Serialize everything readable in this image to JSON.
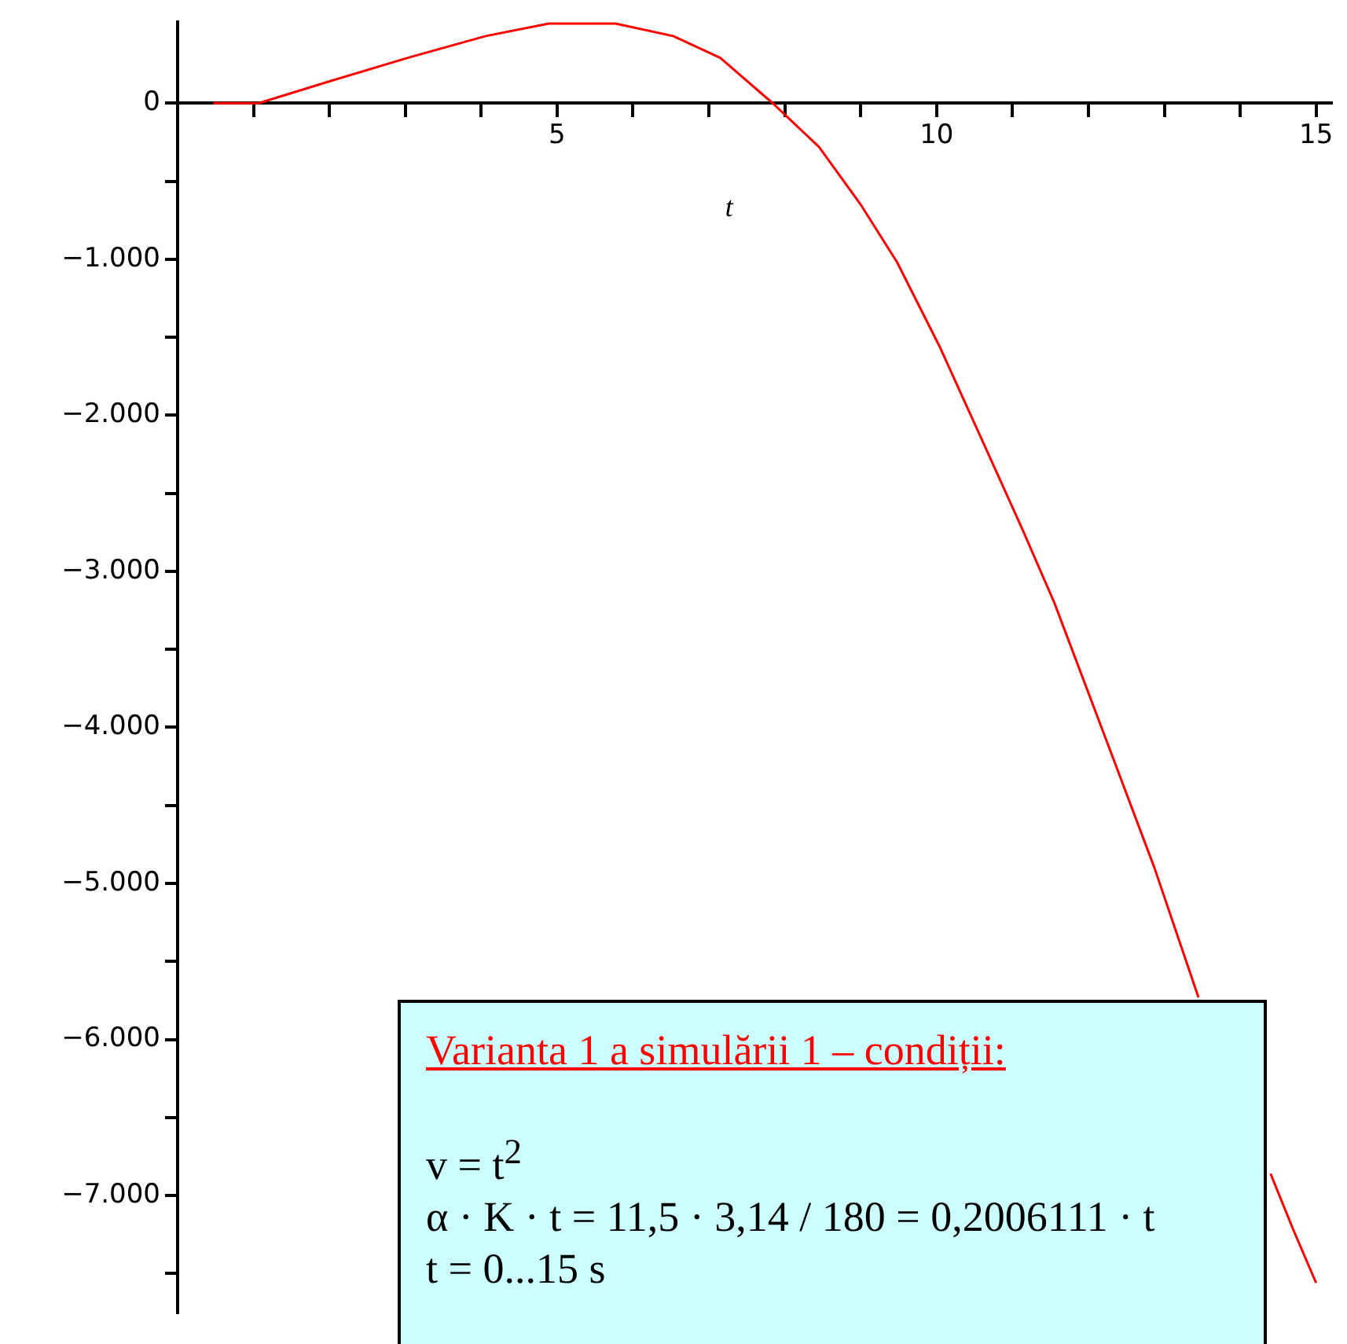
{
  "chart_data": {
    "type": "line",
    "xlabel": "t",
    "x": [
      0.47,
      1.07,
      2.0,
      3.03,
      4.06,
      4.89,
      5.77,
      6.53,
      7.15,
      7.84,
      8.45,
      9.0,
      9.48,
      10.04,
      10.6,
      11.13,
      11.55,
      12.25,
      12.87,
      13.45,
      13.9,
      14.4,
      14.7,
      15.0
    ],
    "series": [
      {
        "color": "#ff0000",
        "values": [
          0,
          0,
          140,
          290,
          430,
          510,
          510,
          430,
          290,
          0,
          -280,
          -650,
          -1020,
          -1560,
          -2160,
          -2730,
          -3200,
          -4100,
          -4900,
          -5730,
          null,
          -6860,
          -7220,
          -7560
        ]
      }
    ],
    "xlim": [
      0,
      15.2
    ],
    "ylim": [
      -7750,
      520
    ],
    "xticks": [
      {
        "value": 1,
        "label": null
      },
      {
        "value": 2,
        "label": null
      },
      {
        "value": 3,
        "label": null
      },
      {
        "value": 4,
        "label": null
      },
      5,
      {
        "value": 6,
        "label": null
      },
      {
        "value": 7,
        "label": null
      },
      {
        "value": 8,
        "label": null
      },
      {
        "value": 9,
        "label": null
      },
      10,
      {
        "value": 11,
        "label": null
      },
      {
        "value": 12,
        "label": null
      },
      {
        "value": 13,
        "label": null
      },
      {
        "value": 14,
        "label": null
      },
      15
    ],
    "yticks": [
      {
        "value": -7500,
        "label": null
      },
      {
        "value": -7000,
        "label": "−7.000"
      },
      {
        "value": -6500,
        "label": null
      },
      {
        "value": -6000,
        "label": "−6.000"
      },
      {
        "value": -5500,
        "label": null
      },
      {
        "value": -5000,
        "label": "−5.000"
      },
      {
        "value": -4500,
        "label": null
      },
      {
        "value": -4000,
        "label": "−4.000"
      },
      {
        "value": -3500,
        "label": null
      },
      {
        "value": -3000,
        "label": "−3.000"
      },
      {
        "value": -2500,
        "label": null
      },
      {
        "value": -2000,
        "label": "−2.000"
      },
      {
        "value": -1500,
        "label": null
      },
      {
        "value": -1000,
        "label": "−1.000"
      },
      {
        "value": -500,
        "label": null
      },
      0
    ],
    "grid": false,
    "legend": false,
    "marker": "none",
    "line_style": "solid",
    "annotations": [
      "Varianta 1 a simulării 1 – condiții:",
      "v = t$^{2}$",
      "α · K · t = 11,5 · 3,14 / 180 = 0,2006111 · t",
      "t = 0...15  s"
    ]
  }
}
